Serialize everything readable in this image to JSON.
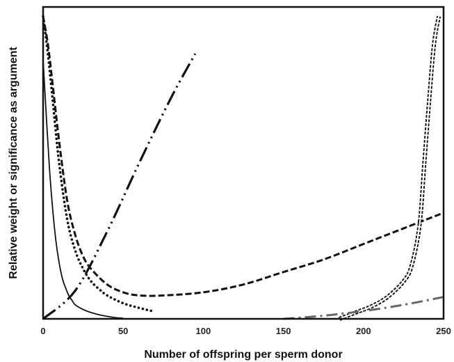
{
  "chart_data": {
    "type": "line",
    "title": "",
    "xlabel": "Number of offspring per sperm donor",
    "ylabel": "Relative weight or significance as argument",
    "xlim": [
      0,
      250
    ],
    "ylim": [
      0,
      1.0
    ],
    "x_ticks": [
      "0",
      "50",
      "100",
      "150",
      "200",
      "250"
    ],
    "y_ticks_shown": false,
    "grid": false,
    "legend": "none",
    "series": [
      {
        "style": "solid",
        "x": [
          0,
          2,
          4,
          6,
          8,
          10,
          12,
          14,
          16,
          18,
          20,
          25,
          30,
          35,
          40,
          45,
          50
        ],
        "y": [
          0.83,
          0.65,
          0.48,
          0.35,
          0.25,
          0.18,
          0.13,
          0.1,
          0.075,
          0.06,
          0.045,
          0.03,
          0.02,
          0.013,
          0.008,
          0.004,
          0.002
        ]
      },
      {
        "style": "dotted",
        "x": [
          0,
          3,
          6,
          10,
          15,
          20,
          25,
          30,
          35,
          40,
          50,
          60,
          68
        ],
        "y": [
          0.97,
          0.85,
          0.7,
          0.5,
          0.32,
          0.22,
          0.16,
          0.12,
          0.095,
          0.075,
          0.05,
          0.035,
          0.025
        ]
      },
      {
        "style": "dashed",
        "x": [
          0,
          3,
          6,
          10,
          15,
          20,
          25,
          30,
          40,
          50,
          60,
          75,
          100,
          125,
          150,
          175,
          200,
          225,
          250
        ],
        "y": [
          0.97,
          0.88,
          0.75,
          0.57,
          0.38,
          0.27,
          0.2,
          0.16,
          0.11,
          0.085,
          0.075,
          0.075,
          0.085,
          0.11,
          0.15,
          0.19,
          0.24,
          0.29,
          0.34
        ]
      },
      {
        "style": "dash-dot-dot",
        "x": [
          0,
          20,
          40,
          60,
          80,
          95
        ],
        "y": [
          0.0,
          0.09,
          0.28,
          0.5,
          0.71,
          0.85
        ]
      },
      {
        "style": "double-dotted",
        "x": [
          185,
          195,
          205,
          215,
          225,
          230,
          235,
          238,
          241,
          244,
          247
        ],
        "y": [
          0.0,
          0.02,
          0.04,
          0.07,
          0.12,
          0.17,
          0.3,
          0.5,
          0.7,
          0.88,
          0.97
        ]
      },
      {
        "style": "gray-dash-dot",
        "x": [
          150,
          175,
          200,
          225,
          250
        ],
        "y": [
          0.0,
          0.01,
          0.025,
          0.045,
          0.07
        ]
      }
    ]
  }
}
